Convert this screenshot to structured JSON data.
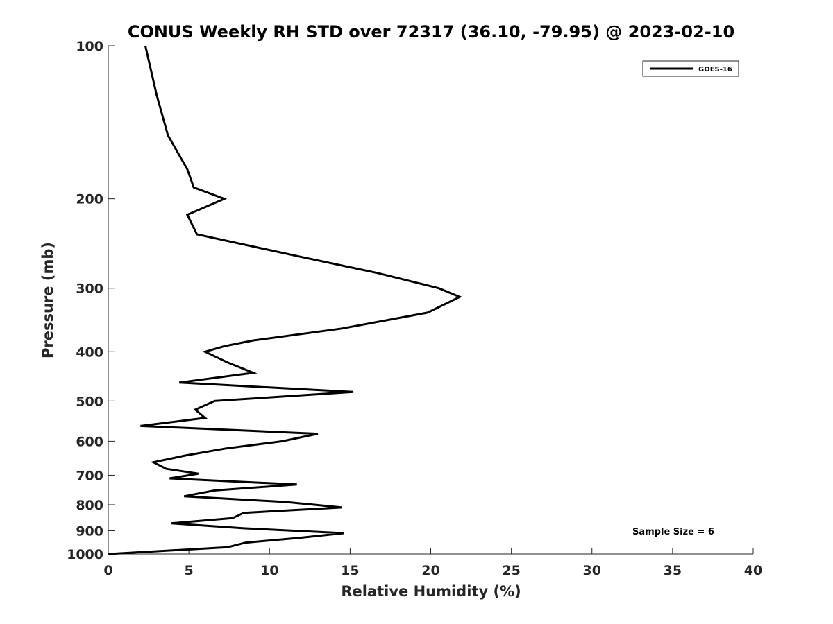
{
  "chart_data": {
    "type": "line",
    "title": "CONUS Weekly RH STD over 72317 (36.10, -79.95) @ 2023-02-10",
    "xlabel": "Relative Humidity (%)",
    "ylabel": "Pressure (mb)",
    "xlim": [
      0,
      40
    ],
    "ylim": [
      100,
      1000
    ],
    "y_scale": "log",
    "y_reversed": true,
    "grid": false,
    "x_ticks": [
      "0",
      "5",
      "10",
      "15",
      "20",
      "25",
      "30",
      "35",
      "40"
    ],
    "y_ticks": [
      "100",
      "200",
      "300",
      "400",
      "500",
      "600",
      "700",
      "800",
      "900",
      "1000"
    ],
    "legend": {
      "placement": "top-right",
      "entries": [
        "GOES-16"
      ]
    },
    "annotation": "Sample Size = 6",
    "series": [
      {
        "name": "GOES-16",
        "color": "#000000",
        "points": [
          [
            2.3,
            100
          ],
          [
            3.0,
            125
          ],
          [
            3.7,
            150
          ],
          [
            4.9,
            175
          ],
          [
            5.3,
            190
          ],
          [
            7.2,
            200
          ],
          [
            4.9,
            215
          ],
          [
            5.5,
            235
          ],
          [
            11.9,
            260
          ],
          [
            16.7,
            280
          ],
          [
            20.5,
            300
          ],
          [
            21.8,
            312
          ],
          [
            19.8,
            335
          ],
          [
            14.5,
            360
          ],
          [
            9.0,
            380
          ],
          [
            7.2,
            390
          ],
          [
            6.0,
            400
          ],
          [
            7.4,
            420
          ],
          [
            9.0,
            440
          ],
          [
            4.4,
            460
          ],
          [
            15.2,
            480
          ],
          [
            6.6,
            500
          ],
          [
            5.4,
            520
          ],
          [
            6.0,
            540
          ],
          [
            2.0,
            560
          ],
          [
            13.0,
            580
          ],
          [
            10.8,
            600
          ],
          [
            7.3,
            620
          ],
          [
            4.8,
            640
          ],
          [
            2.8,
            660
          ],
          [
            3.6,
            680
          ],
          [
            5.6,
            695
          ],
          [
            3.8,
            710
          ],
          [
            11.7,
            730
          ],
          [
            6.6,
            750
          ],
          [
            4.7,
            770
          ],
          [
            11.0,
            790
          ],
          [
            14.5,
            810
          ],
          [
            8.4,
            830
          ],
          [
            7.7,
            850
          ],
          [
            3.9,
            870
          ],
          [
            8.4,
            890
          ],
          [
            14.6,
            910
          ],
          [
            11.8,
            930
          ],
          [
            8.5,
            950
          ],
          [
            7.4,
            970
          ],
          [
            0.0,
            1000
          ]
        ]
      }
    ]
  }
}
